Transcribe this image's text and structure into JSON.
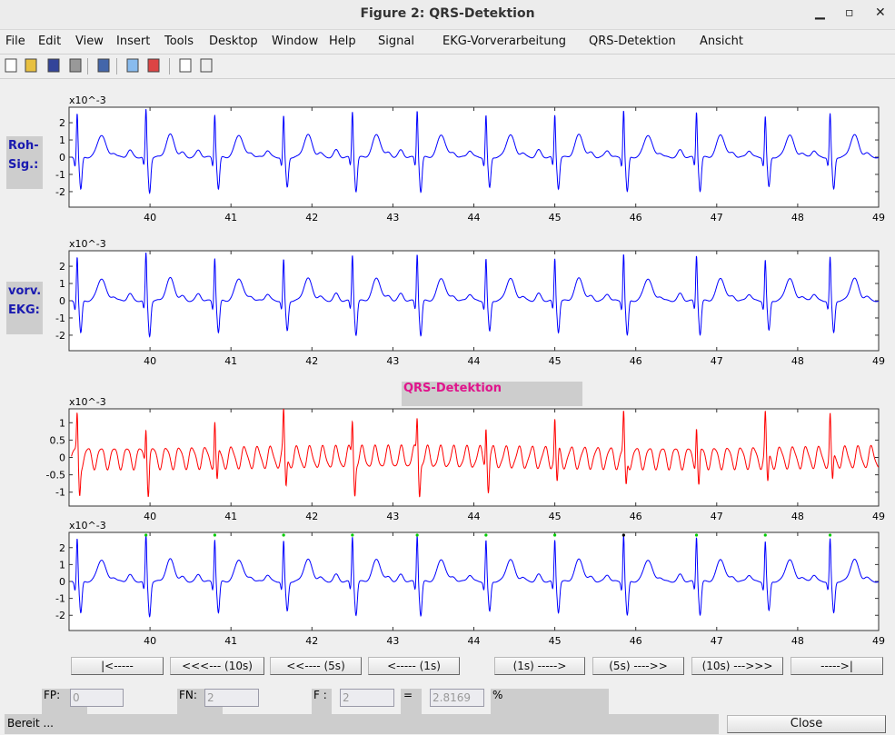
{
  "window": {
    "title": "Figure 2: QRS-Detektion",
    "minimize": "▁",
    "maximize": "▫",
    "close": "✕"
  },
  "menu": [
    "File",
    "Edit",
    "View",
    "Insert",
    "Tools",
    "Desktop",
    "Window",
    "Help",
    "Signal",
    "EKG-Vorverarbeitung",
    "QRS-Detektion",
    "Ansicht"
  ],
  "toolbar": [
    "new-icon",
    "open-icon",
    "save-icon",
    "print-icon",
    "link-icon",
    "colorbar-icon",
    "legend-icon",
    "pointer-icon",
    "property-editor-icon"
  ],
  "labels": {
    "raw1": "Roh-",
    "raw2": "Sig.:",
    "pre1": "vorv.",
    "pre2": "EKG:",
    "qrs": "QRS-Detektion"
  },
  "axes": {
    "xlim": [
      39,
      49
    ],
    "xticks": [
      40,
      41,
      42,
      43,
      44,
      45,
      46,
      47,
      48,
      49
    ],
    "exponent": "x10^-3",
    "plot1": {
      "yticks": [
        2,
        1,
        0,
        -1,
        -2
      ],
      "ylim": [
        -2.9,
        2.9
      ],
      "color": "#0000ff"
    },
    "plot2": {
      "yticks": [
        2,
        1,
        0,
        -1,
        -2
      ],
      "ylim": [
        -2.9,
        2.9
      ],
      "color": "#0000ff"
    },
    "plot3": {
      "yticks": [
        1,
        0.5,
        0,
        -0.5,
        -1
      ],
      "ylim": [
        -1.4,
        1.4
      ],
      "color": "#ff0000"
    },
    "plot4": {
      "yticks": [
        2,
        1,
        0,
        -1,
        -2
      ],
      "ylim": [
        -2.9,
        2.9
      ],
      "color": "#0000ff"
    }
  },
  "beats": [
    39.1,
    39.95,
    40.8,
    41.65,
    42.5,
    43.3,
    44.15,
    45.0,
    45.85,
    46.75,
    47.6,
    48.4
  ],
  "detections": [
    {
      "t": 39.95,
      "color": "#00cc00"
    },
    {
      "t": 40.8,
      "color": "#00cc00"
    },
    {
      "t": 41.65,
      "color": "#00cc00"
    },
    {
      "t": 42.5,
      "color": "#00cc00"
    },
    {
      "t": 43.3,
      "color": "#00cc00"
    },
    {
      "t": 44.15,
      "color": "#00cc00"
    },
    {
      "t": 45.0,
      "color": "#00cc00"
    },
    {
      "t": 45.85,
      "color": "#000000"
    },
    {
      "t": 46.75,
      "color": "#00cc00"
    },
    {
      "t": 47.6,
      "color": "#00cc00"
    },
    {
      "t": 48.4,
      "color": "#00cc00"
    }
  ],
  "nav": [
    "|<-----",
    "<<<--- (10s)",
    "<<---- (5s)",
    "<----- (1s)",
    "(1s) ----->",
    "(5s) ---->>",
    "(10s) --->>>",
    "----->|"
  ],
  "stats": {
    "fp_label": "FP:",
    "fp": "0",
    "fn_label": "FN:",
    "fn": "2",
    "f_label": "F :",
    "f": "2",
    "eq": "=",
    "result": "2.8169",
    "unit": "%"
  },
  "status": "Bereit ...",
  "close": "Close"
}
